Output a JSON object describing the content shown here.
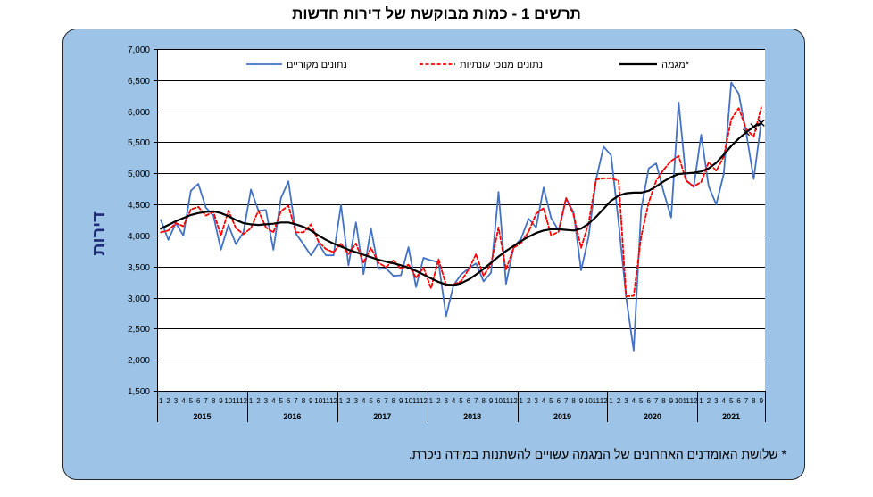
{
  "chart_data": {
    "type": "line",
    "title": "תרשים 1 - כמות מבוקשת של דירות חדשות",
    "ylabel": "דירות",
    "ylim": [
      1500,
      7000
    ],
    "yticks": [
      1500,
      2000,
      2500,
      3000,
      3500,
      4000,
      4500,
      5000,
      5500,
      6000,
      6500,
      7000
    ],
    "ytick_labels": [
      "1,500",
      "2,000",
      "2,500",
      "3,000",
      "3,500",
      "4,000",
      "4,500",
      "5,000",
      "5,500",
      "6,000",
      "6,500",
      "7,000"
    ],
    "grid": true,
    "legend": "top",
    "years": [
      {
        "label": "2015",
        "months": [
          "1",
          "2",
          "3",
          "4",
          "5",
          "6",
          "7",
          "8",
          "9",
          "10",
          "11",
          "12"
        ]
      },
      {
        "label": "2016",
        "months": [
          "1",
          "2",
          "3",
          "4",
          "5",
          "6",
          "7",
          "8",
          "9",
          "10",
          "11",
          "12"
        ]
      },
      {
        "label": "2017",
        "months": [
          "1",
          "2",
          "3",
          "4",
          "5",
          "6",
          "7",
          "8",
          "9",
          "10",
          "11",
          "12"
        ]
      },
      {
        "label": "2018",
        "months": [
          "1",
          "2",
          "3",
          "4",
          "5",
          "6",
          "7",
          "8",
          "9",
          "10",
          "11",
          "12"
        ]
      },
      {
        "label": "2019",
        "months": [
          "1",
          "2",
          "3",
          "4",
          "5",
          "6",
          "7",
          "8",
          "9",
          "10",
          "11",
          "12"
        ]
      },
      {
        "label": "2020",
        "months": [
          "1",
          "2",
          "3",
          "4",
          "5",
          "6",
          "7",
          "8",
          "9",
          "10",
          "11",
          "12"
        ]
      },
      {
        "label": "2021",
        "months": [
          "1",
          "2",
          "3",
          "4",
          "5",
          "6",
          "7",
          "8",
          "9"
        ]
      }
    ],
    "series": [
      {
        "name": "נתונים מקוריים",
        "color": "#4472C4",
        "dashed": false,
        "values": [
          4250,
          3930,
          4200,
          4000,
          4720,
          4830,
          4450,
          4320,
          3770,
          4170,
          3860,
          4050,
          4740,
          4400,
          4410,
          3770,
          4600,
          4870,
          4030,
          3860,
          3680,
          3870,
          3680,
          3680,
          4490,
          3520,
          4210,
          3380,
          4110,
          3460,
          3470,
          3350,
          3360,
          3810,
          3170,
          3640,
          3600,
          3570,
          2700,
          3200,
          3370,
          3470,
          3550,
          3260,
          3400,
          4700,
          3220,
          3810,
          3950,
          4270,
          4130,
          4770,
          4280,
          4080,
          4600,
          4370,
          3440,
          3980,
          4900,
          5430,
          5290,
          4200,
          3000,
          2150,
          4420,
          5080,
          5160,
          4700,
          4290,
          6140,
          4890,
          4780,
          5620,
          4790,
          4500,
          4990,
          6460,
          6280,
          5650,
          4910,
          5830
        ]
      },
      {
        "name": "נתונים מנוכי עונתיות",
        "color": "#FF0000",
        "dashed": true,
        "values": [
          4050,
          4080,
          4200,
          4150,
          4420,
          4460,
          4320,
          4380,
          4000,
          4400,
          4120,
          4020,
          4120,
          4400,
          4130,
          4050,
          4390,
          4480,
          4050,
          4050,
          4180,
          3900,
          3780,
          3730,
          3870,
          3700,
          3870,
          3560,
          3800,
          3560,
          3490,
          3600,
          3460,
          3530,
          3320,
          3480,
          3150,
          3620,
          3200,
          3210,
          3260,
          3450,
          3700,
          3350,
          3540,
          4130,
          3450,
          3800,
          3880,
          4060,
          4350,
          4440,
          4000,
          4060,
          4600,
          4330,
          3800,
          4200,
          4900,
          4920,
          4920,
          4880,
          3020,
          3030,
          3980,
          4530,
          4880,
          5060,
          5200,
          5280,
          4880,
          4790,
          4860,
          5180,
          5040,
          5270,
          5870,
          6050,
          5710,
          5590,
          6060
        ]
      },
      {
        "name": "מגמה*",
        "color": "#000000",
        "dashed": false,
        "end_markers": 3,
        "values": [
          4110,
          4170,
          4230,
          4280,
          4330,
          4360,
          4380,
          4390,
          4360,
          4310,
          4250,
          4200,
          4180,
          4170,
          4180,
          4190,
          4210,
          4210,
          4180,
          4140,
          4080,
          4000,
          3930,
          3870,
          3820,
          3770,
          3730,
          3690,
          3650,
          3610,
          3580,
          3550,
          3520,
          3480,
          3430,
          3370,
          3310,
          3250,
          3210,
          3200,
          3230,
          3290,
          3370,
          3460,
          3560,
          3660,
          3750,
          3830,
          3910,
          3980,
          4040,
          4080,
          4100,
          4100,
          4090,
          4080,
          4110,
          4190,
          4300,
          4430,
          4560,
          4640,
          4680,
          4690,
          4690,
          4720,
          4790,
          4870,
          4940,
          4990,
          5000,
          5010,
          5030,
          5080,
          5170,
          5300,
          5440,
          5560,
          5660,
          5750,
          5810
        ]
      }
    ]
  },
  "footnote": "* שלושת האומדנים האחרונים של המגמה עשויים להשתנות במידה ניכרת.",
  "style": {
    "box_fill": "#9DC3E6",
    "box_border": "#262626",
    "plot_fill": "#FFFFFF",
    "ylabel_color": "#1F2D78"
  }
}
